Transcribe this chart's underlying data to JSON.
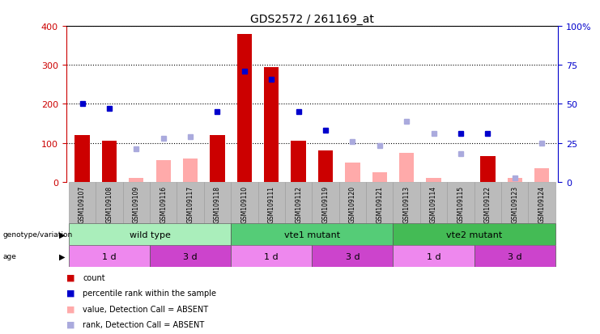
{
  "title": "GDS2572 / 261169_at",
  "samples": [
    "GSM109107",
    "GSM109108",
    "GSM109109",
    "GSM109116",
    "GSM109117",
    "GSM109118",
    "GSM109110",
    "GSM109111",
    "GSM109112",
    "GSM109119",
    "GSM109120",
    "GSM109121",
    "GSM109113",
    "GSM109114",
    "GSM109115",
    "GSM109122",
    "GSM109123",
    "GSM109124"
  ],
  "count": [
    120,
    105,
    null,
    null,
    null,
    120,
    380,
    295,
    105,
    80,
    null,
    null,
    null,
    null,
    null,
    65,
    null,
    null
  ],
  "count_absent": [
    null,
    null,
    10,
    55,
    60,
    null,
    null,
    null,
    null,
    null,
    50,
    25,
    75,
    10,
    null,
    null,
    10,
    35
  ],
  "rank_dark": [
    50,
    47,
    null,
    null,
    null,
    45,
    71,
    66,
    45,
    33,
    null,
    null,
    null,
    null,
    31,
    31,
    null,
    null
  ],
  "rank_absent": [
    null,
    null,
    21,
    28,
    29,
    null,
    null,
    null,
    null,
    null,
    26,
    23,
    39,
    31,
    18,
    null,
    2.5,
    25
  ],
  "ylim_left": [
    0,
    400
  ],
  "ylim_right": [
    0,
    100
  ],
  "left_ticks": [
    0,
    100,
    200,
    300,
    400
  ],
  "right_ticks": [
    0,
    25,
    50,
    75,
    100
  ],
  "right_tick_labels": [
    "0",
    "25",
    "50",
    "75",
    "100%"
  ],
  "genotype_groups": [
    {
      "label": "wild type",
      "start": 0,
      "end": 6,
      "color": "#aaeebb"
    },
    {
      "label": "vte1 mutant",
      "start": 6,
      "end": 12,
      "color": "#55cc77"
    },
    {
      "label": "vte2 mutant",
      "start": 12,
      "end": 18,
      "color": "#44bb55"
    }
  ],
  "age_groups": [
    {
      "label": "1 d",
      "start": 0,
      "end": 3,
      "color": "#ee88ee"
    },
    {
      "label": "3 d",
      "start": 3,
      "end": 6,
      "color": "#cc44cc"
    },
    {
      "label": "1 d",
      "start": 6,
      "end": 9,
      "color": "#ee88ee"
    },
    {
      "label": "3 d",
      "start": 9,
      "end": 12,
      "color": "#cc44cc"
    },
    {
      "label": "1 d",
      "start": 12,
      "end": 15,
      "color": "#ee88ee"
    },
    {
      "label": "3 d",
      "start": 15,
      "end": 18,
      "color": "#cc44cc"
    }
  ],
  "bar_width": 0.55,
  "count_color": "#cc0000",
  "count_absent_color": "#ffaaaa",
  "rank_dark_color": "#0000cc",
  "rank_absent_color": "#aaaadd",
  "legend_items": [
    {
      "label": "count",
      "color": "#cc0000"
    },
    {
      "label": "percentile rank within the sample",
      "color": "#0000cc"
    },
    {
      "label": "value, Detection Call = ABSENT",
      "color": "#ffaaaa"
    },
    {
      "label": "rank, Detection Call = ABSENT",
      "color": "#aaaadd"
    }
  ],
  "bg_color": "#ffffff",
  "ylabel_left_color": "#cc0000",
  "ylabel_right_color": "#0000cc",
  "sample_bg_color": "#bbbbbb"
}
